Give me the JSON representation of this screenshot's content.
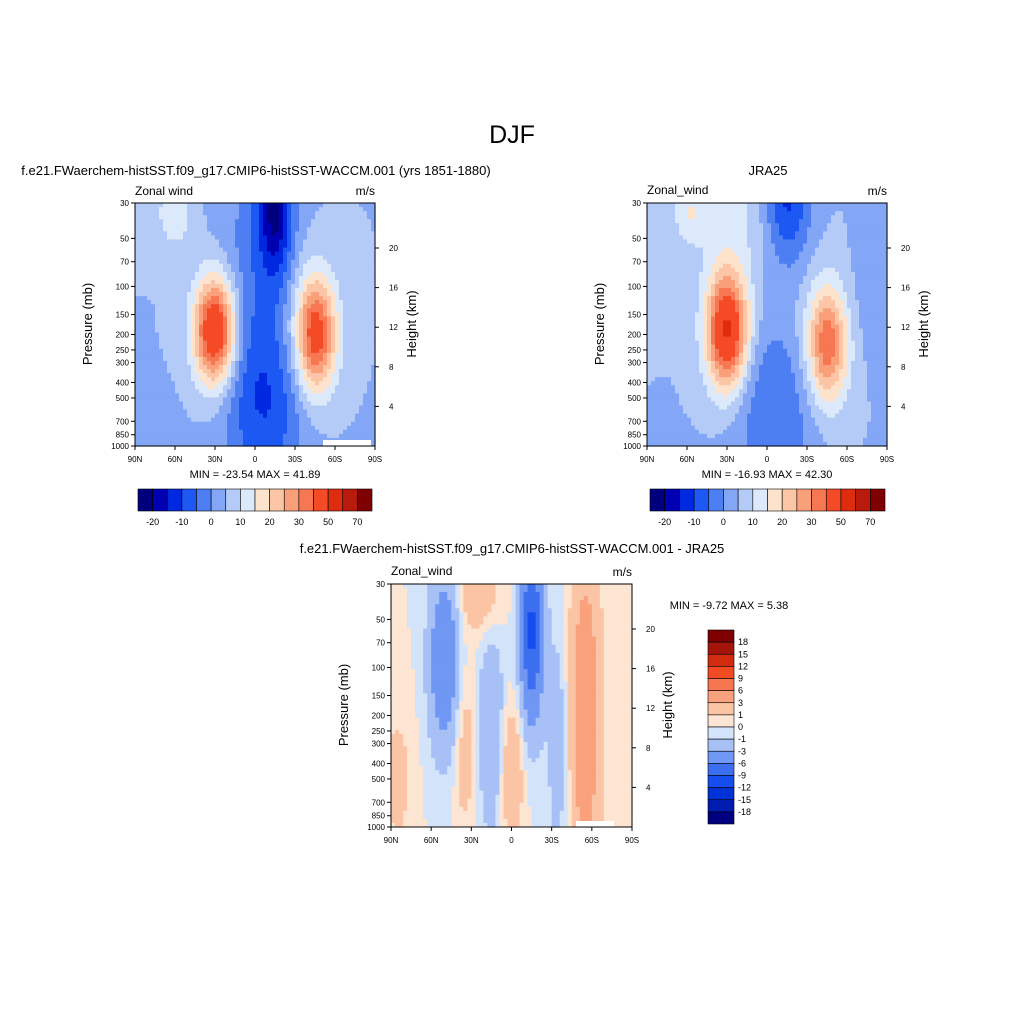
{
  "page": {
    "title": "DJF",
    "diff_title": "f.e21.FWaerchem-histSST.f09_g17.CMIP6-histSST-WACCM.001 - JRA25",
    "panel_titles": [
      "f.e21.FWaerchem-histSST.f09_g17.CMIP6-histSST-WACCM.001 (yrs 1851-1880)",
      "JRA25"
    ]
  },
  "palette": {
    "main": [
      "#00007f",
      "#0000b3",
      "#0028e0",
      "#1d58f3",
      "#4d7ff2",
      "#83a6f6",
      "#b4cbf8",
      "#dce9fb",
      "#fde2cc",
      "#fcc5a5",
      "#f9a07b",
      "#f77752",
      "#f44a26",
      "#de2d0e",
      "#b81a0b",
      "#7f0000"
    ],
    "diff": [
      "#000080",
      "#001cb0",
      "#0032d8",
      "#154dee",
      "#3c6ff0",
      "#6f97f3",
      "#a7c1f6",
      "#d2e3fa",
      "#fde5d3",
      "#fbc4a5",
      "#f9a07c",
      "#f6774f",
      "#f24a22",
      "#d22c0f",
      "#a3150a",
      "#7f0000"
    ]
  },
  "chart_data": [
    {
      "id": "model",
      "type": "heatmap",
      "subtitle_left": "Zonal wind",
      "subtitle_right": "m/s",
      "xlabel": "",
      "ylabel": "Pressure (mb)",
      "ylabel_right": "Height (km)",
      "xticks": [
        "90N",
        "60N",
        "30N",
        "0",
        "30S",
        "60S",
        "90S"
      ],
      "yticks": [
        "30",
        "50",
        "70",
        "100",
        "150",
        "200",
        "250",
        "300",
        "400",
        "500",
        "700",
        "850",
        "1000"
      ],
      "height_ticks": [
        "20",
        "16",
        "12",
        "8",
        "4"
      ],
      "min_max_text": "MIN = -23.54  MAX =  41.89",
      "min": -23.54,
      "max": 41.89,
      "xlim": [
        90,
        -90
      ],
      "ylim": [
        1000,
        30
      ],
      "log_y": true,
      "colorbar": {
        "orientation": "horizontal",
        "levels": [
          -25,
          -20,
          -15,
          -10,
          -5,
          0,
          5,
          10,
          15,
          20,
          25,
          30,
          40,
          50,
          60,
          70
        ],
        "labels": [
          "-20",
          "-10",
          "0",
          "10",
          "20",
          "30",
          "50",
          "70"
        ]
      },
      "features": [
        {
          "lat": 30,
          "p": 190,
          "peak": 41.9
        },
        {
          "lat": -45,
          "p": 200,
          "peak": 35
        },
        {
          "lat": -15,
          "p": 30,
          "peak": -23.5
        }
      ]
    },
    {
      "id": "obs",
      "type": "heatmap",
      "subtitle_left": "Zonal_wind",
      "subtitle_right": "m/s",
      "xlabel": "",
      "ylabel": "Pressure (mb)",
      "ylabel_right": "Height (km)",
      "xticks": [
        "90N",
        "60N",
        "30N",
        "0",
        "30S",
        "60S",
        "90S"
      ],
      "yticks": [
        "30",
        "50",
        "70",
        "100",
        "150",
        "200",
        "250",
        "300",
        "400",
        "500",
        "700",
        "850",
        "1000"
      ],
      "height_ticks": [
        "20",
        "16",
        "12",
        "8",
        "4"
      ],
      "min_max_text": "MIN = -16.93  MAX =  42.30",
      "min": -16.93,
      "max": 42.3,
      "xlim": [
        90,
        -90
      ],
      "ylim": [
        1000,
        30
      ],
      "log_y": true,
      "colorbar": {
        "orientation": "horizontal",
        "levels": [
          -25,
          -20,
          -15,
          -10,
          -5,
          0,
          5,
          10,
          15,
          20,
          25,
          30,
          40,
          50,
          60,
          70
        ],
        "labels": [
          "-20",
          "-10",
          "0",
          "10",
          "20",
          "30",
          "50",
          "70"
        ]
      },
      "features": [
        {
          "lat": 30,
          "p": 190,
          "peak": 42.3
        },
        {
          "lat": -45,
          "p": 230,
          "peak": 30
        },
        {
          "lat": -15,
          "p": 30,
          "peak": -16.9
        }
      ]
    },
    {
      "id": "diff",
      "type": "heatmap",
      "subtitle_left": "Zonal_wind",
      "subtitle_right": "m/s",
      "xlabel": "",
      "ylabel": "Pressure (mb)",
      "ylabel_right": "Height (km)",
      "xticks": [
        "90N",
        "60N",
        "30N",
        "0",
        "30S",
        "60S",
        "90S"
      ],
      "yticks": [
        "30",
        "50",
        "70",
        "100",
        "150",
        "200",
        "250",
        "300",
        "400",
        "500",
        "700",
        "850",
        "1000"
      ],
      "height_ticks": [
        "20",
        "16",
        "12",
        "8",
        "4"
      ],
      "min_max_text": "MIN =  -9.72  MAX =   5.38",
      "min": -9.72,
      "max": 5.38,
      "xlim": [
        90,
        -90
      ],
      "ylim": [
        1000,
        30
      ],
      "log_y": true,
      "colorbar": {
        "orientation": "vertical",
        "levels": [
          -18,
          -15,
          -12,
          -9,
          -6,
          -3,
          -1,
          0,
          1,
          3,
          6,
          9,
          12,
          15,
          18
        ],
        "labels": [
          "18",
          "15",
          "12",
          "9",
          "6",
          "3",
          "1",
          "0",
          "-1",
          "-3",
          "-6",
          "-9",
          "-12",
          "-15",
          "-18"
        ]
      },
      "features": [
        {
          "lat": -55,
          "p": 200,
          "peak": 5.38
        },
        {
          "lat": 0,
          "p": 400,
          "peak": 3
        },
        {
          "lat": 35,
          "p": 300,
          "peak": 2
        },
        {
          "lat": -15,
          "p": 60,
          "peak": -9.72
        },
        {
          "lat": 50,
          "p": 100,
          "peak": -6
        }
      ]
    }
  ]
}
